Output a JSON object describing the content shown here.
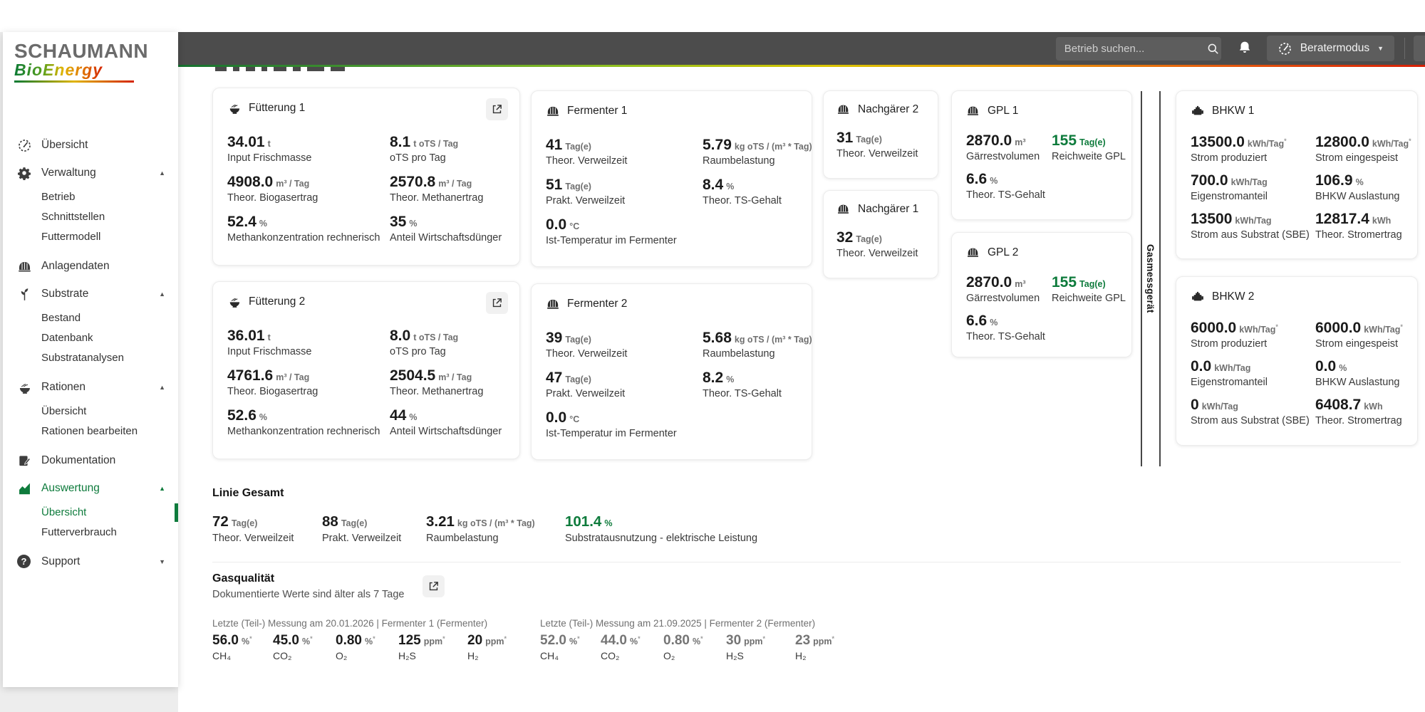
{
  "brand": {
    "name_top": "SCHAUMANN",
    "name_bottom": "BioEnergy"
  },
  "topbar": {
    "search_placeholder": "Betrieb suchen...",
    "mode_button": "Beratermodus"
  },
  "sidebar": {
    "items": [
      {
        "label": "Übersicht"
      },
      {
        "label": "Verwaltung"
      },
      {
        "label": "Betrieb"
      },
      {
        "label": "Schnittstellen"
      },
      {
        "label": "Futtermodell"
      },
      {
        "label": "Anlagendaten"
      },
      {
        "label": "Substrate"
      },
      {
        "label": "Bestand"
      },
      {
        "label": "Datenbank"
      },
      {
        "label": "Substratanalysen"
      },
      {
        "label": "Rationen"
      },
      {
        "label": "Übersicht"
      },
      {
        "label": "Rationen bearbeiten"
      },
      {
        "label": "Dokumentation"
      },
      {
        "label": "Auswertung"
      },
      {
        "label": "Übersicht"
      },
      {
        "label": "Futterverbrauch"
      },
      {
        "label": "Support"
      }
    ]
  },
  "divider_label": "Gasmessgerät",
  "colors": {
    "accent_green": "#0e7b3c",
    "topbar_gray": "#4c4c4c"
  },
  "cards": {
    "fuetterung1": {
      "title": "Fütterung 1",
      "metrics": [
        {
          "value": "34.01",
          "unit": "t",
          "label": "Input Frischmasse"
        },
        {
          "value": "8.1",
          "unit": "t oTS / Tag",
          "label": "oTS pro Tag"
        },
        {
          "value": "4908.0",
          "unit": "m³ / Tag",
          "label": "Theor. Biogasertrag"
        },
        {
          "value": "2570.8",
          "unit": "m³ / Tag",
          "label": "Theor. Methanertrag"
        },
        {
          "value": "52.4",
          "unit": "%",
          "label": "Methankonzentration rechnerisch"
        },
        {
          "value": "35",
          "unit": "%",
          "label": "Anteil Wirtschaftsdünger"
        }
      ]
    },
    "fuetterung2": {
      "title": "Fütterung 2",
      "metrics": [
        {
          "value": "36.01",
          "unit": "t",
          "label": "Input Frischmasse"
        },
        {
          "value": "8.0",
          "unit": "t oTS / Tag",
          "label": "oTS pro Tag"
        },
        {
          "value": "4761.6",
          "unit": "m³ / Tag",
          "label": "Theor. Biogasertrag"
        },
        {
          "value": "2504.5",
          "unit": "m³ / Tag",
          "label": "Theor. Methanertrag"
        },
        {
          "value": "52.6",
          "unit": "%",
          "label": "Methankonzentration rechnerisch"
        },
        {
          "value": "44",
          "unit": "%",
          "label": "Anteil Wirtschaftsdünger"
        }
      ]
    },
    "fermenter1": {
      "title": "Fermenter 1",
      "metrics": [
        {
          "value": "41",
          "unit": "Tag(e)",
          "label": "Theor. Verweilzeit"
        },
        {
          "value": "5.79",
          "unit": "kg oTS / (m³ * Tag)",
          "label": "Raumbelastung"
        },
        {
          "value": "51",
          "unit": "Tag(e)",
          "label": "Prakt. Verweilzeit"
        },
        {
          "value": "8.4",
          "unit": "%",
          "label": "Theor. TS-Gehalt"
        },
        {
          "value": "0.0",
          "unit": "°C",
          "label": "Ist-Temperatur im Fermenter"
        }
      ]
    },
    "fermenter2": {
      "title": "Fermenter 2",
      "metrics": [
        {
          "value": "39",
          "unit": "Tag(e)",
          "label": "Theor. Verweilzeit"
        },
        {
          "value": "5.68",
          "unit": "kg oTS / (m³ * Tag)",
          "label": "Raumbelastung"
        },
        {
          "value": "47",
          "unit": "Tag(e)",
          "label": "Prakt. Verweilzeit"
        },
        {
          "value": "8.2",
          "unit": "%",
          "label": "Theor. TS-Gehalt"
        },
        {
          "value": "0.0",
          "unit": "°C",
          "label": "Ist-Temperatur im Fermenter"
        }
      ]
    },
    "nachgaerer2": {
      "title": "Nachgärer 2",
      "metrics": [
        {
          "value": "31",
          "unit": "Tag(e)",
          "label": "Theor. Verweilzeit"
        }
      ]
    },
    "nachgaerer1": {
      "title": "Nachgärer 1",
      "metrics": [
        {
          "value": "32",
          "unit": "Tag(e)",
          "label": "Theor. Verweilzeit"
        }
      ]
    },
    "gpl1": {
      "title": "GPL 1",
      "metrics": [
        {
          "value": "2870.0",
          "unit": "m³",
          "label": "Gärrestvolumen"
        },
        {
          "value": "155",
          "unit": "Tag(e)",
          "label": "Reichweite GPL",
          "accent": true
        },
        {
          "value": "6.6",
          "unit": "%",
          "label": "Theor. TS-Gehalt"
        }
      ]
    },
    "gpl2": {
      "title": "GPL 2",
      "metrics": [
        {
          "value": "2870.0",
          "unit": "m³",
          "label": "Gärrestvolumen"
        },
        {
          "value": "155",
          "unit": "Tag(e)",
          "label": "Reichweite GPL",
          "accent": true
        },
        {
          "value": "6.6",
          "unit": "%",
          "label": "Theor. TS-Gehalt"
        }
      ]
    },
    "bhkw1": {
      "title": "BHKW 1",
      "metrics": [
        {
          "value": "13500.0",
          "unit": "kWh/Tag*",
          "label": "Strom produziert"
        },
        {
          "value": "12800.0",
          "unit": "kWh/Tag*",
          "label": "Strom eingespeist"
        },
        {
          "value": "700.0",
          "unit": "kWh/Tag",
          "label": "Eigenstromanteil"
        },
        {
          "value": "106.9",
          "unit": "%",
          "label": "BHKW Auslastung"
        },
        {
          "value": "13500",
          "unit": "kWh/Tag",
          "label": "Strom aus Substrat (SBE)"
        },
        {
          "value": "12817.4",
          "unit": "kWh",
          "label": "Theor. Stromertrag"
        }
      ]
    },
    "bhkw2": {
      "title": "BHKW 2",
      "metrics": [
        {
          "value": "6000.0",
          "unit": "kWh/Tag*",
          "label": "Strom produziert"
        },
        {
          "value": "6000.0",
          "unit": "kWh/Tag*",
          "label": "Strom eingespeist"
        },
        {
          "value": "0.0",
          "unit": "kWh/Tag",
          "label": "Eigenstromanteil"
        },
        {
          "value": "0.0",
          "unit": "%",
          "label": "BHKW Auslastung"
        },
        {
          "value": "0",
          "unit": "kWh/Tag",
          "label": "Strom aus Substrat (SBE)"
        },
        {
          "value": "6408.7",
          "unit": "kWh",
          "label": "Theor. Stromertrag"
        }
      ]
    }
  },
  "linie_gesamt": {
    "heading": "Linie Gesamt",
    "metrics": [
      {
        "value": "72",
        "unit": "Tag(e)",
        "label": "Theor. Verweilzeit"
      },
      {
        "value": "88",
        "unit": "Tag(e)",
        "label": "Prakt. Verweilzeit"
      },
      {
        "value": "3.21",
        "unit": "kg oTS / (m³ * Tag)",
        "label": "Raumbelastung"
      },
      {
        "value": "101.4",
        "unit": "%",
        "label": "Substratausnutzung - elektrische Leistung",
        "accent": true
      }
    ]
  },
  "gasqualitaet": {
    "heading": "Gasqualität",
    "notice": "Dokumentierte Werte sind älter als 7 Tage",
    "blocks": [
      {
        "header": "Letzte (Teil-) Messung am 20.01.2026 | Fermenter 1 (Fermenter)",
        "metrics": [
          {
            "value": "56.0",
            "unit": "%*",
            "label": "CH₄"
          },
          {
            "value": "45.0",
            "unit": "%*",
            "label": "CO₂"
          },
          {
            "value": "0.80",
            "unit": "%*",
            "label": "O₂"
          },
          {
            "value": "125",
            "unit": "ppm*",
            "label": "H₂S"
          },
          {
            "value": "20",
            "unit": "ppm*",
            "label": "H₂"
          }
        ]
      },
      {
        "header": "Letzte (Teil-) Messung am 21.09.2025 | Fermenter 2 (Fermenter)",
        "metrics": [
          {
            "value": "52.0",
            "unit": "%*",
            "label": "CH₄",
            "muted": true
          },
          {
            "value": "44.0",
            "unit": "%*",
            "label": "CO₂",
            "muted": true
          },
          {
            "value": "0.80",
            "unit": "%*",
            "label": "O₂",
            "muted": true
          },
          {
            "value": "30",
            "unit": "ppm*",
            "label": "H₂S",
            "muted": true
          },
          {
            "value": "23",
            "unit": "ppm*",
            "label": "H₂",
            "muted": true
          }
        ]
      }
    ]
  }
}
